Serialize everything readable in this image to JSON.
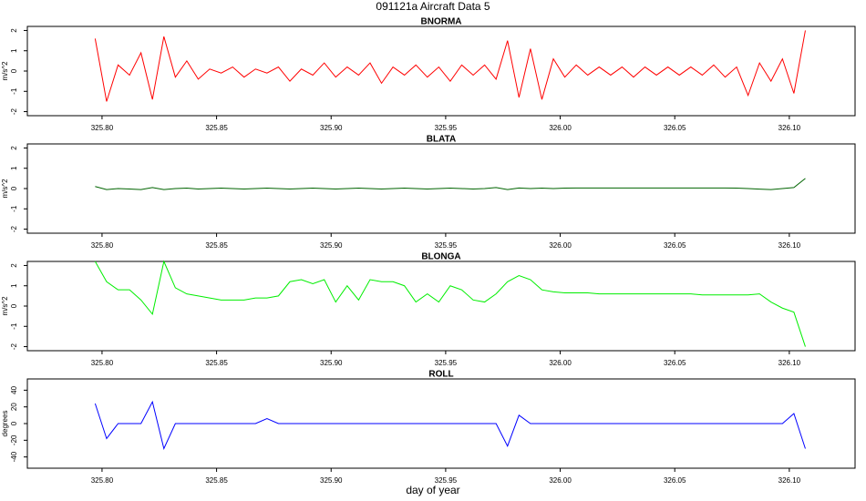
{
  "title": "091121a   Aircraft Data 5",
  "xlabel": "day of year",
  "chart_data": [
    {
      "type": "line",
      "title": "BNORMA",
      "ylabel": "m/s^2",
      "color": "#ff0000",
      "x": [
        325.797,
        325.802,
        325.807,
        325.812,
        325.817,
        325.822,
        325.827,
        325.832,
        325.837,
        325.842,
        325.847,
        325.852,
        325.857,
        325.862,
        325.867,
        325.872,
        325.877,
        325.882,
        325.887,
        325.892,
        325.897,
        325.902,
        325.907,
        325.912,
        325.917,
        325.922,
        325.927,
        325.932,
        325.937,
        325.942,
        325.947,
        325.952,
        325.957,
        325.962,
        325.967,
        325.972,
        325.977,
        325.982,
        325.987,
        325.992,
        325.997,
        326.002,
        326.007,
        326.012,
        326.017,
        326.022,
        326.027,
        326.032,
        326.037,
        326.042,
        326.047,
        326.052,
        326.057,
        326.062,
        326.067,
        326.072,
        326.077,
        326.082,
        326.087,
        326.092,
        326.097,
        326.102,
        326.107
      ],
      "values": [
        1.6,
        -1.5,
        0.3,
        -0.2,
        0.9,
        -1.4,
        1.7,
        -0.3,
        0.5,
        -0.4,
        0.1,
        -0.1,
        0.2,
        -0.3,
        0.1,
        -0.1,
        0.2,
        -0.5,
        0.1,
        -0.2,
        0.4,
        -0.3,
        0.2,
        -0.2,
        0.4,
        -0.6,
        0.2,
        -0.2,
        0.3,
        -0.3,
        0.2,
        -0.5,
        0.3,
        -0.2,
        0.3,
        -0.4,
        1.5,
        -1.3,
        1.1,
        -1.4,
        0.6,
        -0.3,
        0.3,
        -0.2,
        0.2,
        -0.2,
        0.2,
        -0.3,
        0.2,
        -0.2,
        0.2,
        -0.2,
        0.2,
        -0.2,
        0.3,
        -0.3,
        0.2,
        -1.2,
        0.4,
        -0.5,
        0.6,
        -1.1,
        2.0
      ],
      "xlim": [
        325.7674,
        326.1287
      ],
      "ylim": [
        -2.2,
        2.2
      ],
      "xticks": [
        {
          "value": 325.8,
          "label": "325.80"
        },
        {
          "value": 325.85,
          "label": "325.85"
        },
        {
          "value": 325.9,
          "label": "325.90"
        },
        {
          "value": 325.95,
          "label": "325.95"
        },
        {
          "value": 326.0,
          "label": "326.00"
        },
        {
          "value": 326.05,
          "label": "326.05"
        },
        {
          "value": 326.1,
          "label": "326.10"
        }
      ],
      "yticks": [
        -2,
        -1,
        0,
        1,
        2
      ]
    },
    {
      "type": "line",
      "title": "BLATA",
      "ylabel": "m/s^2",
      "color": "#006400",
      "x": [
        325.797,
        325.802,
        325.807,
        325.812,
        325.817,
        325.822,
        325.827,
        325.832,
        325.837,
        325.842,
        325.847,
        325.852,
        325.857,
        325.862,
        325.867,
        325.872,
        325.877,
        325.882,
        325.887,
        325.892,
        325.897,
        325.902,
        325.907,
        325.912,
        325.917,
        325.922,
        325.927,
        325.932,
        325.937,
        325.942,
        325.947,
        325.952,
        325.957,
        325.962,
        325.967,
        325.972,
        325.977,
        325.982,
        325.987,
        325.992,
        325.997,
        326.002,
        326.007,
        326.012,
        326.017,
        326.022,
        326.027,
        326.032,
        326.037,
        326.042,
        326.047,
        326.052,
        326.057,
        326.062,
        326.067,
        326.072,
        326.077,
        326.082,
        326.087,
        326.092,
        326.097,
        326.102,
        326.107
      ],
      "values": [
        0.1,
        -0.05,
        0,
        -0.02,
        -0.05,
        0.05,
        -0.05,
        0,
        0.02,
        -0.02,
        0,
        0.02,
        0,
        -0.02,
        0,
        0.02,
        0,
        -0.02,
        0,
        0.02,
        0,
        -0.02,
        0,
        0.02,
        0,
        -0.02,
        0,
        0.02,
        0,
        -0.02,
        0,
        0.02,
        0,
        -0.02,
        0,
        0.05,
        -0.05,
        0.03,
        0,
        0.02,
        0,
        0.02,
        0.03,
        0.03,
        0.03,
        0.03,
        0.03,
        0.03,
        0.03,
        0.03,
        0.03,
        0.03,
        0.03,
        0.03,
        0.03,
        0.03,
        0.02,
        0,
        -0.03,
        -0.05,
        0,
        0.05,
        0.5
      ],
      "xlim": [
        325.7674,
        326.1287
      ],
      "ylim": [
        -2.2,
        2.2
      ],
      "xticks": [
        {
          "value": 325.8,
          "label": "325.80"
        },
        {
          "value": 325.85,
          "label": "325.85"
        },
        {
          "value": 325.9,
          "label": "325.90"
        },
        {
          "value": 325.95,
          "label": "325.95"
        },
        {
          "value": 326.0,
          "label": "326.00"
        },
        {
          "value": 326.05,
          "label": "326.05"
        },
        {
          "value": 326.1,
          "label": "326.10"
        }
      ],
      "yticks": [
        -2,
        -1,
        0,
        1,
        2
      ]
    },
    {
      "type": "line",
      "title": "BLONGA",
      "ylabel": "m/s^2",
      "color": "#00ee00",
      "x": [
        325.797,
        325.802,
        325.807,
        325.812,
        325.817,
        325.822,
        325.827,
        325.832,
        325.837,
        325.842,
        325.847,
        325.852,
        325.857,
        325.862,
        325.867,
        325.872,
        325.877,
        325.882,
        325.887,
        325.892,
        325.897,
        325.902,
        325.907,
        325.912,
        325.917,
        325.922,
        325.927,
        325.932,
        325.937,
        325.942,
        325.947,
        325.952,
        325.957,
        325.962,
        325.967,
        325.972,
        325.977,
        325.982,
        325.987,
        325.992,
        325.997,
        326.002,
        326.007,
        326.012,
        326.017,
        326.022,
        326.027,
        326.032,
        326.037,
        326.042,
        326.047,
        326.052,
        326.057,
        326.062,
        326.067,
        326.072,
        326.077,
        326.082,
        326.087,
        326.092,
        326.097,
        326.102,
        326.107
      ],
      "values": [
        2.2,
        1.2,
        0.8,
        0.8,
        0.3,
        -0.4,
        2.2,
        0.9,
        0.6,
        0.5,
        0.4,
        0.3,
        0.3,
        0.3,
        0.4,
        0.4,
        0.5,
        1.2,
        1.3,
        1.1,
        1.3,
        0.2,
        1.0,
        0.3,
        1.3,
        1.2,
        1.2,
        1.0,
        0.2,
        0.6,
        0.2,
        1.0,
        0.8,
        0.3,
        0.2,
        0.6,
        1.2,
        1.5,
        1.3,
        0.8,
        0.7,
        0.65,
        0.65,
        0.65,
        0.6,
        0.6,
        0.6,
        0.6,
        0.6,
        0.6,
        0.6,
        0.6,
        0.6,
        0.55,
        0.55,
        0.55,
        0.55,
        0.55,
        0.6,
        0.2,
        -0.1,
        -0.3,
        -2.0
      ],
      "xlim": [
        325.7674,
        326.1287
      ],
      "ylim": [
        -2.2,
        2.2
      ],
      "xticks": [
        {
          "value": 325.8,
          "label": "325.80"
        },
        {
          "value": 325.85,
          "label": "325.85"
        },
        {
          "value": 325.9,
          "label": "325.90"
        },
        {
          "value": 325.95,
          "label": "325.95"
        },
        {
          "value": 326.0,
          "label": "326.00"
        },
        {
          "value": 326.05,
          "label": "326.05"
        },
        {
          "value": 326.1,
          "label": "326.10"
        }
      ],
      "yticks": [
        -2,
        -1,
        0,
        1,
        2
      ]
    },
    {
      "type": "line",
      "title": "ROLL",
      "ylabel": "degrees",
      "color": "#0000ff",
      "x": [
        325.797,
        325.802,
        325.807,
        325.812,
        325.817,
        325.822,
        325.827,
        325.832,
        325.837,
        325.842,
        325.847,
        325.852,
        325.857,
        325.862,
        325.867,
        325.872,
        325.877,
        325.882,
        325.887,
        325.892,
        325.897,
        325.902,
        325.907,
        325.912,
        325.917,
        325.922,
        325.927,
        325.932,
        325.937,
        325.942,
        325.947,
        325.952,
        325.957,
        325.962,
        325.967,
        325.972,
        325.977,
        325.982,
        325.987,
        325.992,
        325.997,
        326.002,
        326.007,
        326.012,
        326.017,
        326.022,
        326.027,
        326.032,
        326.037,
        326.042,
        326.047,
        326.052,
        326.057,
        326.062,
        326.067,
        326.072,
        326.077,
        326.082,
        326.087,
        326.092,
        326.097,
        326.102,
        326.107
      ],
      "values": [
        24,
        -18,
        0,
        0,
        0,
        26,
        -30,
        0,
        0,
        0,
        0,
        0,
        0,
        0,
        0,
        6,
        0,
        0,
        0,
        0,
        0,
        0,
        0,
        0,
        0,
        0,
        0,
        0,
        0,
        0,
        0,
        0,
        0,
        0,
        0,
        0,
        -27,
        10,
        0,
        0,
        0,
        0,
        0,
        0,
        0,
        0,
        0,
        0,
        0,
        0,
        0,
        0,
        0,
        0,
        0,
        0,
        0,
        0,
        0,
        0,
        0,
        12,
        -30
      ],
      "xlim": [
        325.7674,
        326.1287
      ],
      "ylim": [
        -53.5,
        53.5
      ],
      "xticks": [
        {
          "value": 325.8,
          "label": "325.80"
        },
        {
          "value": 325.85,
          "label": "325.85"
        },
        {
          "value": 325.9,
          "label": "325.90"
        },
        {
          "value": 325.95,
          "label": "325.95"
        },
        {
          "value": 326.0,
          "label": "326.00"
        },
        {
          "value": 326.05,
          "label": "326.05"
        },
        {
          "value": 326.1,
          "label": "326.10"
        }
      ],
      "yticks": [
        -40,
        -20,
        0,
        20,
        40
      ]
    }
  ]
}
